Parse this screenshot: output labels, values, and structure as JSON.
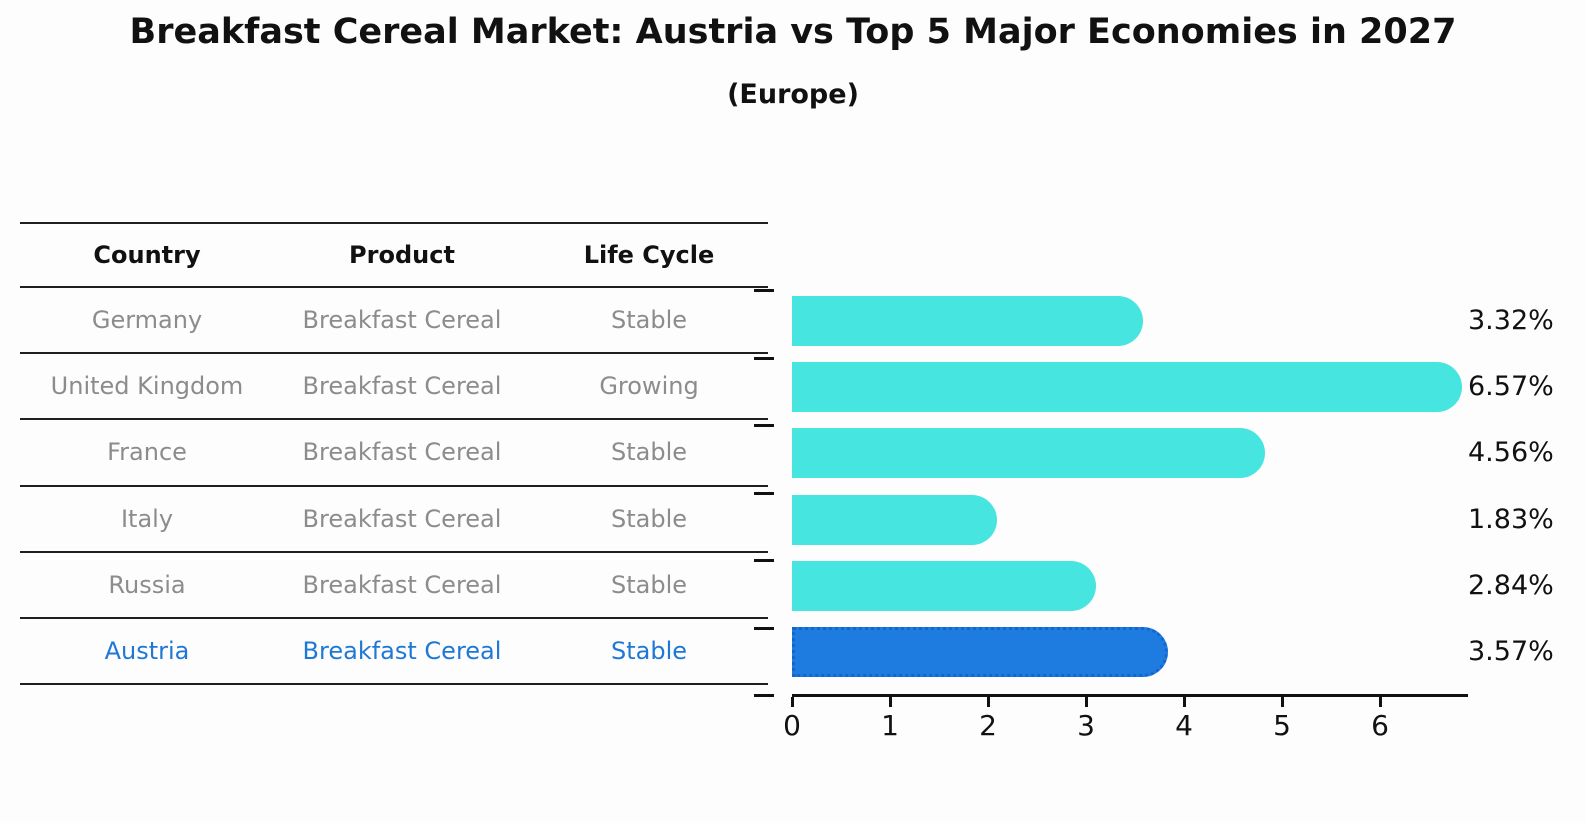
{
  "title": "Breakfast Cereal Market: Austria vs Top 5 Major Economies in 2027",
  "subtitle": "(Europe)",
  "table": {
    "headers": [
      "Country",
      "Product",
      "Life Cycle"
    ],
    "rows": [
      {
        "country": "Germany",
        "product": "Breakfast Cereal",
        "life_cycle": "Stable"
      },
      {
        "country": "United Kingdom",
        "product": "Breakfast Cereal",
        "life_cycle": "Growing"
      },
      {
        "country": "France",
        "product": "Breakfast Cereal",
        "life_cycle": "Stable"
      },
      {
        "country": "Italy",
        "product": "Breakfast Cereal",
        "life_cycle": "Stable"
      },
      {
        "country": "Russia",
        "product": "Breakfast Cereal",
        "life_cycle": "Stable"
      },
      {
        "country": "Austria",
        "product": "Breakfast Cereal",
        "life_cycle": "Stable"
      }
    ]
  },
  "chart_data": {
    "type": "bar",
    "orientation": "horizontal",
    "title": "Breakfast Cereal Market: Austria vs Top 5 Major Economies in 2027 (Europe)",
    "categories": [
      "Germany",
      "United Kingdom",
      "France",
      "Italy",
      "Russia",
      "Austria"
    ],
    "values": [
      3.32,
      6.57,
      4.56,
      1.83,
      2.84,
      3.57
    ],
    "value_labels": [
      "3.32%",
      "6.57%",
      "4.56%",
      "1.83%",
      "2.84%",
      "3.57%"
    ],
    "unit": "%",
    "xlabel": "",
    "ylabel": "",
    "xlim": [
      0,
      6.9
    ],
    "xticks": [
      "0",
      "1",
      "2",
      "3",
      "4",
      "5",
      "6"
    ],
    "grid": false,
    "legend": "none",
    "highlight_category": "Austria",
    "highlight_index": 5
  },
  "colors": {
    "bar": "#46E5E0",
    "highlight_bar": "#1E7CE0",
    "highlight_border": "#1565D0",
    "highlight_text": "#1E78D6",
    "row_text": "#8C8C8C",
    "header_text": "#111111",
    "axis": "#111111",
    "background": "#FDFDFD"
  }
}
